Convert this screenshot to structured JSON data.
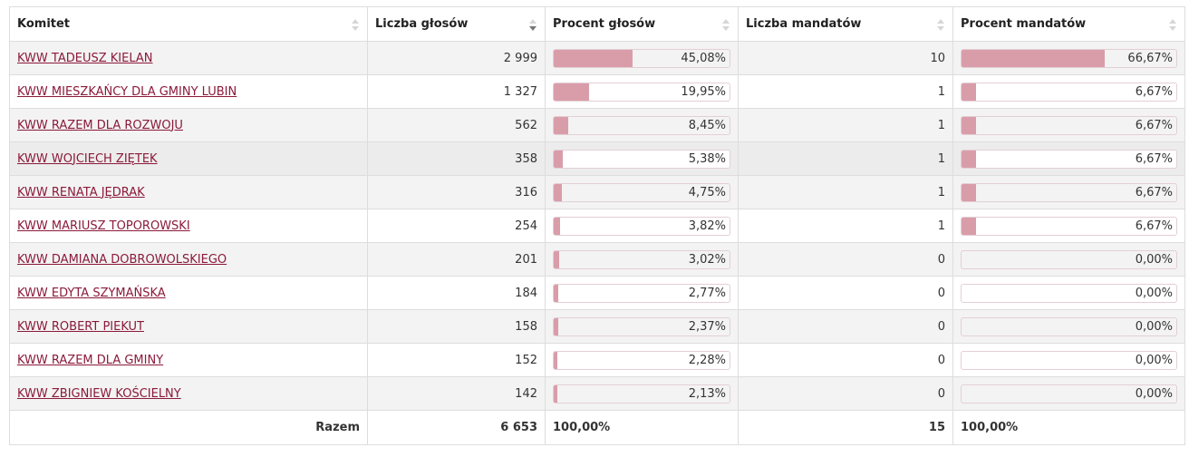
{
  "headers": {
    "committee": "Komitet",
    "votes": "Liczba głosów",
    "votes_pct": "Procent głosów",
    "seats": "Liczba mandatów",
    "seats_pct": "Procent mandatów"
  },
  "accent_color": "#d99daa",
  "link_color": "#8b1a3a",
  "rows": [
    {
      "name": "KWW TADEUSZ KIELAN",
      "votes": "2 999",
      "votes_pct": "45,08%",
      "votes_frac": 0.4508,
      "seats": "10",
      "seats_pct": "66,67%",
      "seats_frac": 0.6667
    },
    {
      "name": "KWW MIESZKAŃCY DLA GMINY LUBIN",
      "votes": "1 327",
      "votes_pct": "19,95%",
      "votes_frac": 0.1995,
      "seats": "1",
      "seats_pct": "6,67%",
      "seats_frac": 0.0667
    },
    {
      "name": "KWW RAZEM DLA ROZWOJU",
      "votes": "562",
      "votes_pct": "8,45%",
      "votes_frac": 0.0845,
      "seats": "1",
      "seats_pct": "6,67%",
      "seats_frac": 0.0667
    },
    {
      "name": "KWW WOJCIECH ZIĘTEK",
      "votes": "358",
      "votes_pct": "5,38%",
      "votes_frac": 0.0538,
      "seats": "1",
      "seats_pct": "6,67%",
      "seats_frac": 0.0667
    },
    {
      "name": "KWW RENATA JĘDRAK",
      "votes": "316",
      "votes_pct": "4,75%",
      "votes_frac": 0.0475,
      "seats": "1",
      "seats_pct": "6,67%",
      "seats_frac": 0.0667
    },
    {
      "name": "KWW MARIUSZ TOPOROWSKI",
      "votes": "254",
      "votes_pct": "3,82%",
      "votes_frac": 0.0382,
      "seats": "1",
      "seats_pct": "6,67%",
      "seats_frac": 0.0667
    },
    {
      "name": "KWW DAMIANA DOBROWOLSKIEGO",
      "votes": "201",
      "votes_pct": "3,02%",
      "votes_frac": 0.0302,
      "seats": "0",
      "seats_pct": "0,00%",
      "seats_frac": 0
    },
    {
      "name": "KWW EDYTA SZYMAŃSKA",
      "votes": "184",
      "votes_pct": "2,77%",
      "votes_frac": 0.0277,
      "seats": "0",
      "seats_pct": "0,00%",
      "seats_frac": 0
    },
    {
      "name": "KWW ROBERT PIEKUT",
      "votes": "158",
      "votes_pct": "2,37%",
      "votes_frac": 0.0237,
      "seats": "0",
      "seats_pct": "0,00%",
      "seats_frac": 0
    },
    {
      "name": "KWW RAZEM DLA GMINY",
      "votes": "152",
      "votes_pct": "2,28%",
      "votes_frac": 0.0228,
      "seats": "0",
      "seats_pct": "0,00%",
      "seats_frac": 0
    },
    {
      "name": "KWW ZBIGNIEW KOŚCIELNY",
      "votes": "142",
      "votes_pct": "2,13%",
      "votes_frac": 0.0213,
      "seats": "0",
      "seats_pct": "0,00%",
      "seats_frac": 0
    }
  ],
  "totals": {
    "label": "Razem",
    "votes": "6 653",
    "votes_pct": "100,00%",
    "seats": "15",
    "seats_pct": "100,00%"
  }
}
